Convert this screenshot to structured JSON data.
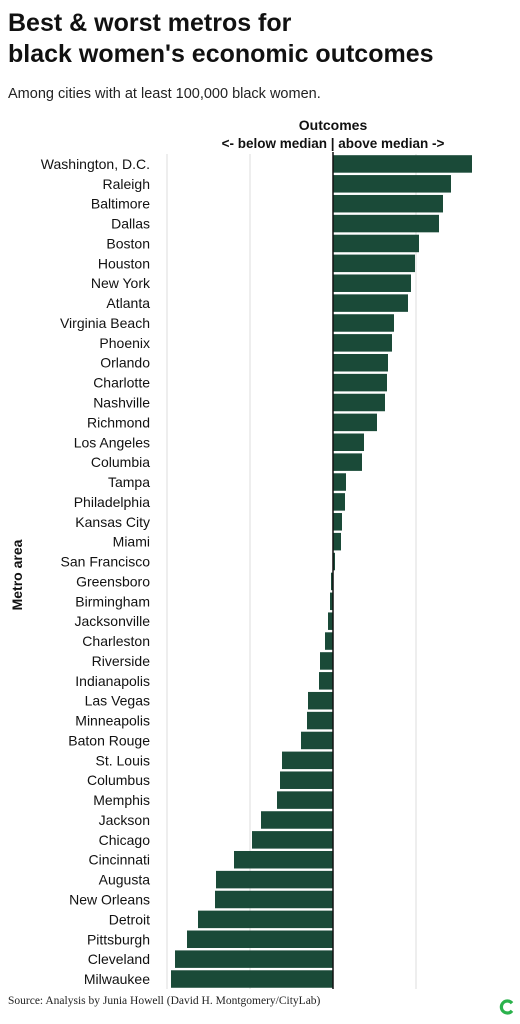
{
  "title_line1": "Best & worst metros for",
  "title_line2": "black women's economic outcomes",
  "subtitle": "Among cities with at least 100,000 black women.",
  "source": "Source: Analysis by Junia Howell (David H. Montgomery/CityLab)",
  "logo_icon": "citylab-logo-icon",
  "colors": {
    "bar": "#1a4a38",
    "brand": "#2bb24c",
    "grid": "#dddddd",
    "axis": "#111111"
  },
  "chart_data": {
    "type": "bar",
    "orientation": "horizontal",
    "xlabel_line1": "Outcomes",
    "xlabel_line2": "<- below median | above median ->",
    "ylabel": "Metro area",
    "xlim": [
      -1.6,
      1.7
    ],
    "grid": true,
    "categories": [
      "Washington, D.C.",
      "Raleigh",
      "Baltimore",
      "Dallas",
      "Boston",
      "Houston",
      "New York",
      "Atlanta",
      "Virginia Beach",
      "Phoenix",
      "Orlando",
      "Charlotte",
      "Nashville",
      "Richmond",
      "Los Angeles",
      "Columbia",
      "Tampa",
      "Philadelphia",
      "Kansas City",
      "Miami",
      "San Francisco",
      "Greensboro",
      "Birmingham",
      "Jacksonville",
      "Charleston",
      "Riverside",
      "Indianapolis",
      "Las Vegas",
      "Minneapolis",
      "Baton Rouge",
      "St. Louis",
      "Columbus",
      "Memphis",
      "Jackson",
      "Chicago",
      "Cincinnati",
      "Augusta",
      "New Orleans",
      "Detroit",
      "Pittsburgh",
      "Cleveland",
      "Milwaukee"
    ],
    "values": [
      1.39,
      1.18,
      1.1,
      1.06,
      0.86,
      0.82,
      0.78,
      0.75,
      0.61,
      0.59,
      0.55,
      0.54,
      0.52,
      0.44,
      0.31,
      0.29,
      0.13,
      0.12,
      0.09,
      0.08,
      0.02,
      -0.02,
      -0.03,
      -0.05,
      -0.08,
      -0.13,
      -0.14,
      -0.25,
      -0.26,
      -0.32,
      -0.51,
      -0.53,
      -0.56,
      -0.72,
      -0.81,
      -0.99,
      -1.17,
      -1.18,
      -1.35,
      -1.46,
      -1.58,
      -1.62
    ]
  }
}
